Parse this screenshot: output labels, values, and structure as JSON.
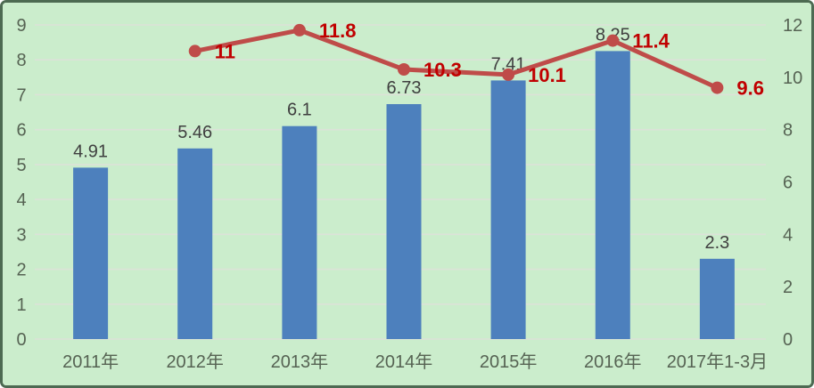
{
  "chart_data": {
    "type": "bar+line",
    "title": "",
    "categories": [
      "2011年",
      "2012年",
      "2013年",
      "2014年",
      "2015年",
      "2016年",
      "2017年1-3月"
    ],
    "series": [
      {
        "name": "bar-series",
        "type": "bar",
        "axis": "left",
        "values": [
          4.91,
          5.46,
          6.1,
          6.73,
          7.41,
          8.25,
          2.3
        ],
        "labels": [
          "4.91",
          "5.46",
          "6.1",
          "6.73",
          "7.41",
          "8.25",
          "2.3"
        ],
        "color": "#4d80bd",
        "label_color": "#3f3f3f"
      },
      {
        "name": "line-series",
        "type": "line",
        "axis": "right",
        "values": [
          null,
          11,
          11.8,
          10.3,
          10.1,
          11.4,
          9.6
        ],
        "labels": [
          "",
          "11",
          "11.8",
          "10.3",
          "10.1",
          "11.4",
          "9.6"
        ],
        "color": "#bf4c49",
        "label_color": "#c00000",
        "marker": "circle"
      }
    ],
    "left_axis": {
      "min": 0,
      "max": 9,
      "step": 1,
      "ticks": [
        "0",
        "1",
        "2",
        "3",
        "4",
        "5",
        "6",
        "7",
        "8",
        "9"
      ]
    },
    "right_axis": {
      "min": 0,
      "max": 12,
      "step": 2,
      "ticks": [
        "0",
        "2",
        "4",
        "6",
        "8",
        "10",
        "12"
      ]
    },
    "grid": true,
    "legend": "none",
    "style": {
      "background": "#cbedcc",
      "gridline_color": "#dce2d8",
      "frame_color": "#4d6a52",
      "axis_text_color": "#566353"
    }
  }
}
